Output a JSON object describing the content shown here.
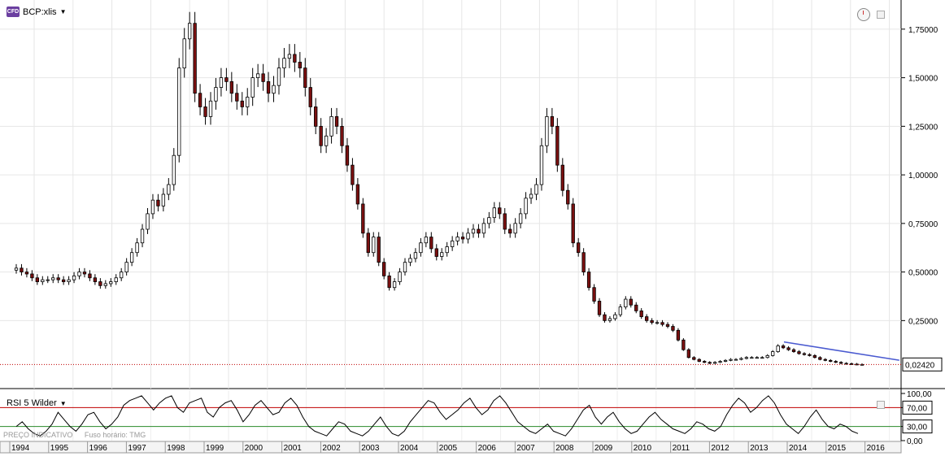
{
  "header": {
    "badge": "CFD",
    "symbol": "BCP:xlis"
  },
  "rsi": {
    "title": "RSI 5 Wilder",
    "levels": [
      70,
      30
    ],
    "axis": [
      "100,00",
      "70,00",
      "30,00",
      "0,00"
    ]
  },
  "footer": {
    "left": "PREÇO INDICATIVO",
    "tz": "Fuso horário: TMG"
  },
  "last_price_label": "0,02420",
  "colors": {
    "up": "#ffffff",
    "down": "#7b1010",
    "rsi_upper": "#c00000",
    "rsi_lower": "#2a8a2a",
    "trend": "#4a5ad0",
    "last": "#c00000"
  },
  "chart_data": {
    "type": "candlestick",
    "ylim": [
      -0.1,
      1.9
    ],
    "yticks": [
      0.25,
      0.5,
      0.75,
      1.0,
      1.25,
      1.5,
      1.75
    ],
    "ytick_labels": [
      "0,25000",
      "0,50000",
      "0,75000",
      "1,00000",
      "1,25000",
      "1,50000",
      "1,75000"
    ],
    "years": [
      "1994",
      "1995",
      "1996",
      "1997",
      "1998",
      "1999",
      "2000",
      "2001",
      "2002",
      "2003",
      "2004",
      "2005",
      "2006",
      "2007",
      "2008",
      "2009",
      "2010",
      "2011",
      "2012",
      "2013",
      "2014",
      "2015",
      "2016"
    ],
    "closes": [
      0.52,
      0.5,
      0.49,
      0.47,
      0.45,
      0.46,
      0.46,
      0.47,
      0.46,
      0.45,
      0.46,
      0.48,
      0.5,
      0.49,
      0.47,
      0.45,
      0.43,
      0.44,
      0.45,
      0.47,
      0.5,
      0.55,
      0.6,
      0.65,
      0.72,
      0.8,
      0.87,
      0.84,
      0.9,
      0.95,
      1.1,
      1.55,
      1.7,
      1.78,
      1.42,
      1.35,
      1.3,
      1.38,
      1.45,
      1.5,
      1.48,
      1.42,
      1.38,
      1.35,
      1.4,
      1.5,
      1.52,
      1.48,
      1.42,
      1.46,
      1.55,
      1.6,
      1.62,
      1.58,
      1.55,
      1.45,
      1.35,
      1.25,
      1.15,
      1.2,
      1.3,
      1.25,
      1.15,
      1.05,
      0.95,
      0.85,
      0.7,
      0.6,
      0.68,
      0.55,
      0.48,
      0.42,
      0.45,
      0.5,
      0.55,
      0.57,
      0.6,
      0.65,
      0.68,
      0.62,
      0.58,
      0.6,
      0.63,
      0.66,
      0.68,
      0.67,
      0.7,
      0.72,
      0.7,
      0.75,
      0.78,
      0.83,
      0.8,
      0.72,
      0.7,
      0.75,
      0.8,
      0.88,
      0.9,
      0.95,
      1.15,
      1.3,
      1.25,
      1.05,
      0.92,
      0.85,
      0.65,
      0.6,
      0.5,
      0.42,
      0.35,
      0.28,
      0.25,
      0.26,
      0.28,
      0.32,
      0.36,
      0.33,
      0.3,
      0.27,
      0.25,
      0.24,
      0.24,
      0.23,
      0.22,
      0.2,
      0.15,
      0.1,
      0.06,
      0.05,
      0.04,
      0.035,
      0.03,
      0.035,
      0.04,
      0.045,
      0.05,
      0.05,
      0.055,
      0.06,
      0.06,
      0.06,
      0.06,
      0.07,
      0.09,
      0.12,
      0.11,
      0.1,
      0.09,
      0.08,
      0.075,
      0.07,
      0.06,
      0.05,
      0.045,
      0.04,
      0.035,
      0.03,
      0.028,
      0.026,
      0.024,
      0.0242
    ],
    "rsi": [
      30,
      40,
      25,
      15,
      10,
      20,
      35,
      60,
      45,
      30,
      20,
      35,
      55,
      60,
      40,
      25,
      35,
      50,
      75,
      85,
      90,
      95,
      80,
      65,
      80,
      90,
      95,
      70,
      60,
      80,
      85,
      90,
      60,
      50,
      70,
      80,
      85,
      65,
      40,
      55,
      75,
      85,
      70,
      55,
      60,
      80,
      90,
      75,
      50,
      30,
      20,
      15,
      10,
      25,
      40,
      35,
      20,
      15,
      10,
      20,
      35,
      50,
      30,
      15,
      10,
      20,
      40,
      55,
      70,
      85,
      80,
      60,
      45,
      55,
      65,
      80,
      90,
      70,
      55,
      65,
      85,
      95,
      80,
      60,
      40,
      30,
      20,
      15,
      25,
      35,
      20,
      15,
      10,
      25,
      45,
      65,
      75,
      50,
      35,
      50,
      60,
      40,
      25,
      15,
      20,
      35,
      50,
      60,
      45,
      35,
      25,
      20,
      15,
      25,
      40,
      35,
      25,
      20,
      30,
      55,
      75,
      90,
      80,
      60,
      70,
      85,
      95,
      80,
      55,
      35,
      25,
      15,
      30,
      50,
      65,
      45,
      30,
      25,
      35,
      30,
      20,
      15
    ],
    "trendline": [
      [
        0.87,
        0.14
      ],
      [
        0.998,
        0.046
      ]
    ],
    "last_value": 0.0242
  }
}
